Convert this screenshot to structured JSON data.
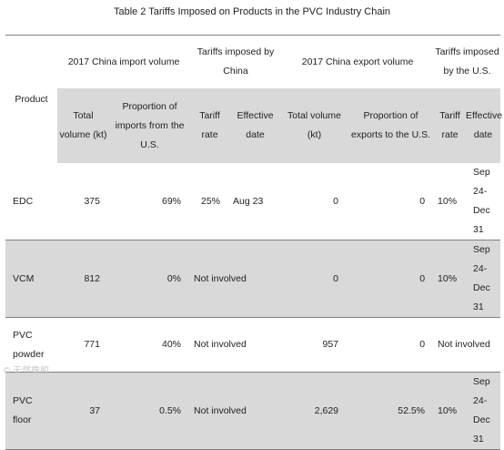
{
  "caption": "Table 2 Tariffs Imposed on Products in the PVC Industry Chain",
  "header": {
    "product": "Product",
    "group_import": "2017 China import volume",
    "group_tariff_china": "Tariffs imposed by China",
    "group_export": "2017 China export volume",
    "group_tariff_us": "Tariffs imposed by the U.S.",
    "sub": {
      "import_total": "Total volume (kt)",
      "import_prop": "Proportion of imports from the U.S.",
      "cn_tariff_rate": "Tariff rate",
      "cn_effective_date": "Effective date",
      "export_total": "Total volume (kt)",
      "export_prop": "Proportion of exports to the U.S.",
      "us_tariff_rate": "Tariff rate",
      "us_effective_date": "Effective date"
    }
  },
  "rows": [
    {
      "product": "EDC",
      "import_total": "375",
      "import_prop": "69%",
      "cn_tariff_rate": "25%",
      "cn_effective_date": "Aug 23",
      "export_total": "0",
      "export_prop": "0",
      "us_tariff_rate": "10%",
      "us_effective_date": "Sep 24-\nDec 31"
    },
    {
      "product": "VCM",
      "import_total": "812",
      "import_prop": "0%",
      "cn_tariff": "Not involved",
      "export_total": "0",
      "export_prop": "0",
      "us_tariff_rate": "10%",
      "us_effective_date": "Sep 24-\nDec 31"
    },
    {
      "product": "PVC\npowder",
      "import_total": "771",
      "import_prop": "40%",
      "cn_tariff": "Not involved",
      "export_total": "957",
      "export_prop": "0",
      "us_tariff": "Not involved"
    },
    {
      "product": "PVC\nfloor",
      "import_total": "37",
      "import_prop": "0.5%",
      "cn_tariff": "Not involved",
      "export_total": "2,629",
      "export_prop": "52.5%",
      "us_tariff_rate": "10%",
      "us_effective_date": "Sep 24-\nDec 31"
    }
  ],
  "watermark": "© 天然橡胶"
}
